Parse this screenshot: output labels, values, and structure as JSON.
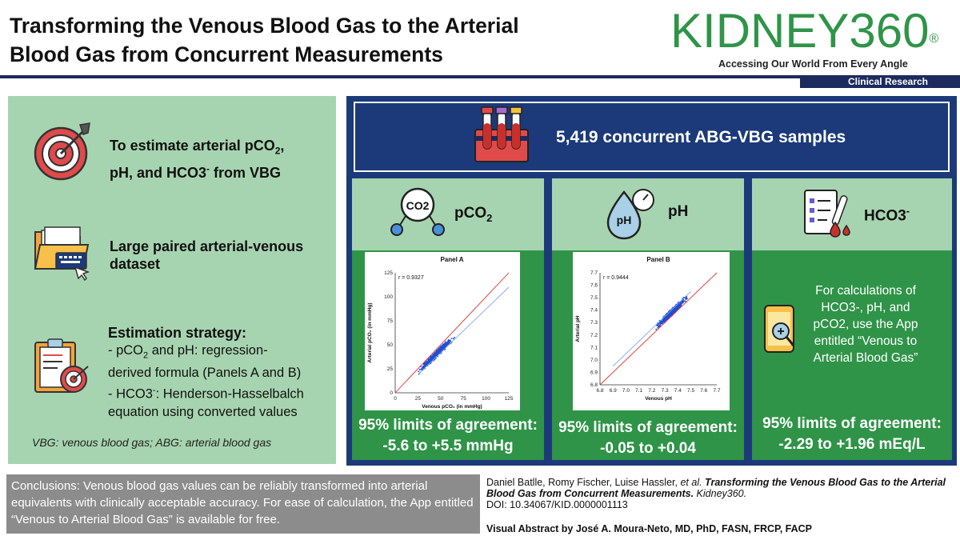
{
  "header": {
    "title_line1": "Transforming the Venous Blood Gas to the Arterial",
    "title_line2": "Blood Gas from Concurrent Measurements",
    "brand": "KIDNEY360",
    "brand_mark": "®",
    "tagline": "Accessing Our World From Every Angle",
    "section": "Clinical Research"
  },
  "left": {
    "aim_line1": "To estimate arterial pCO",
    "aim_sub": "2",
    "aim_line1_end": ",",
    "aim_line2": "pH, and HCO3",
    "aim_sup": "-",
    "aim_line2_end": " from VBG",
    "data_line1": "Large paired arterial-venous",
    "data_line2": "dataset",
    "strategy_title": "Estimation strategy:",
    "strat1_a": " - pCO",
    "strat1_sub": "2",
    "strat1_b": " and pH: regression-",
    "strat2": "derived formula (Panels A and B)",
    "strat3_a": "- HCO3",
    "strat3_sup": "-",
    "strat3_b": ": Henderson-Hasselbalch",
    "strat4": "equation using converted values",
    "footnote": "VBG: venous blood gas; ABG: arterial blood gas"
  },
  "right": {
    "samples": "5,419 concurrent ABG-VBG samples",
    "col1_title": "pCO",
    "col1_sub": "2",
    "col2_title": "pH",
    "col3_title": "HCO3",
    "col3_sup": "-",
    "co2_label": "CO2",
    "ph_label": "pH",
    "loa_title": "95% limits of agreement:",
    "loa1": "-5.6 to +5.5 mmHg",
    "loa2": "-0.05 to +0.04",
    "loa3": "-2.29 to +1.96 mEq/L",
    "app_l1": "For calculations of",
    "app_l2": "HCO3-, pH, and",
    "app_l3": "pCO2, use the App",
    "app_l4": "entitled “Venous to",
    "app_l5": "Arterial Blood Gas”"
  },
  "chart_data": [
    {
      "type": "scatter",
      "title": "Panel A",
      "annotation": "r = 0.9327",
      "xlabel": "Venous pCO₂ (in mmHg)",
      "ylabel": "Arterial pCO₂ (in mmHg)",
      "xlim": [
        0,
        125
      ],
      "ylim": [
        0,
        125
      ],
      "xticks": [
        "0",
        "25",
        "50",
        "75",
        "100",
        "125"
      ],
      "yticks": [
        "0",
        "25",
        "50",
        "75",
        "100",
        "125"
      ],
      "identity_line": [
        [
          0,
          0
        ],
        [
          125,
          125
        ]
      ],
      "regression_line": [
        [
          25,
          19
        ],
        [
          125,
          110
        ]
      ],
      "cluster_center": [
        45,
        40
      ]
    },
    {
      "type": "scatter",
      "title": "Panel B",
      "annotation": "r = 0.9444",
      "xlabel": "Venous pH",
      "ylabel": "Arterial pH",
      "xlim": [
        6.8,
        7.7
      ],
      "ylim": [
        6.8,
        7.7
      ],
      "xticks": [
        "6.8",
        "6.9",
        "7.0",
        "7.1",
        "7.2",
        "7.3",
        "7.4",
        "7.5",
        "7.6",
        "7.7"
      ],
      "yticks": [
        "6.8",
        "6.9",
        "7.0",
        "7.1",
        "7.2",
        "7.3",
        "7.4",
        "7.5",
        "7.6",
        "7.7"
      ],
      "identity_line": [
        [
          6.8,
          6.8
        ],
        [
          7.7,
          7.7
        ]
      ],
      "regression_line": [
        [
          6.9,
          6.95
        ],
        [
          7.5,
          7.55
        ]
      ],
      "cluster_center": [
        7.35,
        7.38
      ]
    }
  ],
  "citation": {
    "authors": "Daniel Batlle, Romy Fischer, Luise Hassler, ",
    "etal": "et al.",
    "title": " Transforming the Venous Blood Gas to the Arterial Blood Gas from Concurrent Measurements.",
    "journal": " Kidney360.",
    "doi": "DOI: 10.34067/KID.0000001113",
    "credit": "Visual Abstract by José A. Moura-Neto, MD, PhD, FASN, FRCP, FACP"
  },
  "conclusion": "Conclusions: Venous blood gas values can be reliably transformed into arterial equivalents with clinically acceptable accuracy. For ease of calculation, the App entitled “Venous to Arterial Blood Gas” is available for free.",
  "colors": {
    "navy": "#1c3a7a",
    "green": "#2f9448",
    "mint": "#a7d4b0",
    "grey": "#8c8c8c"
  }
}
